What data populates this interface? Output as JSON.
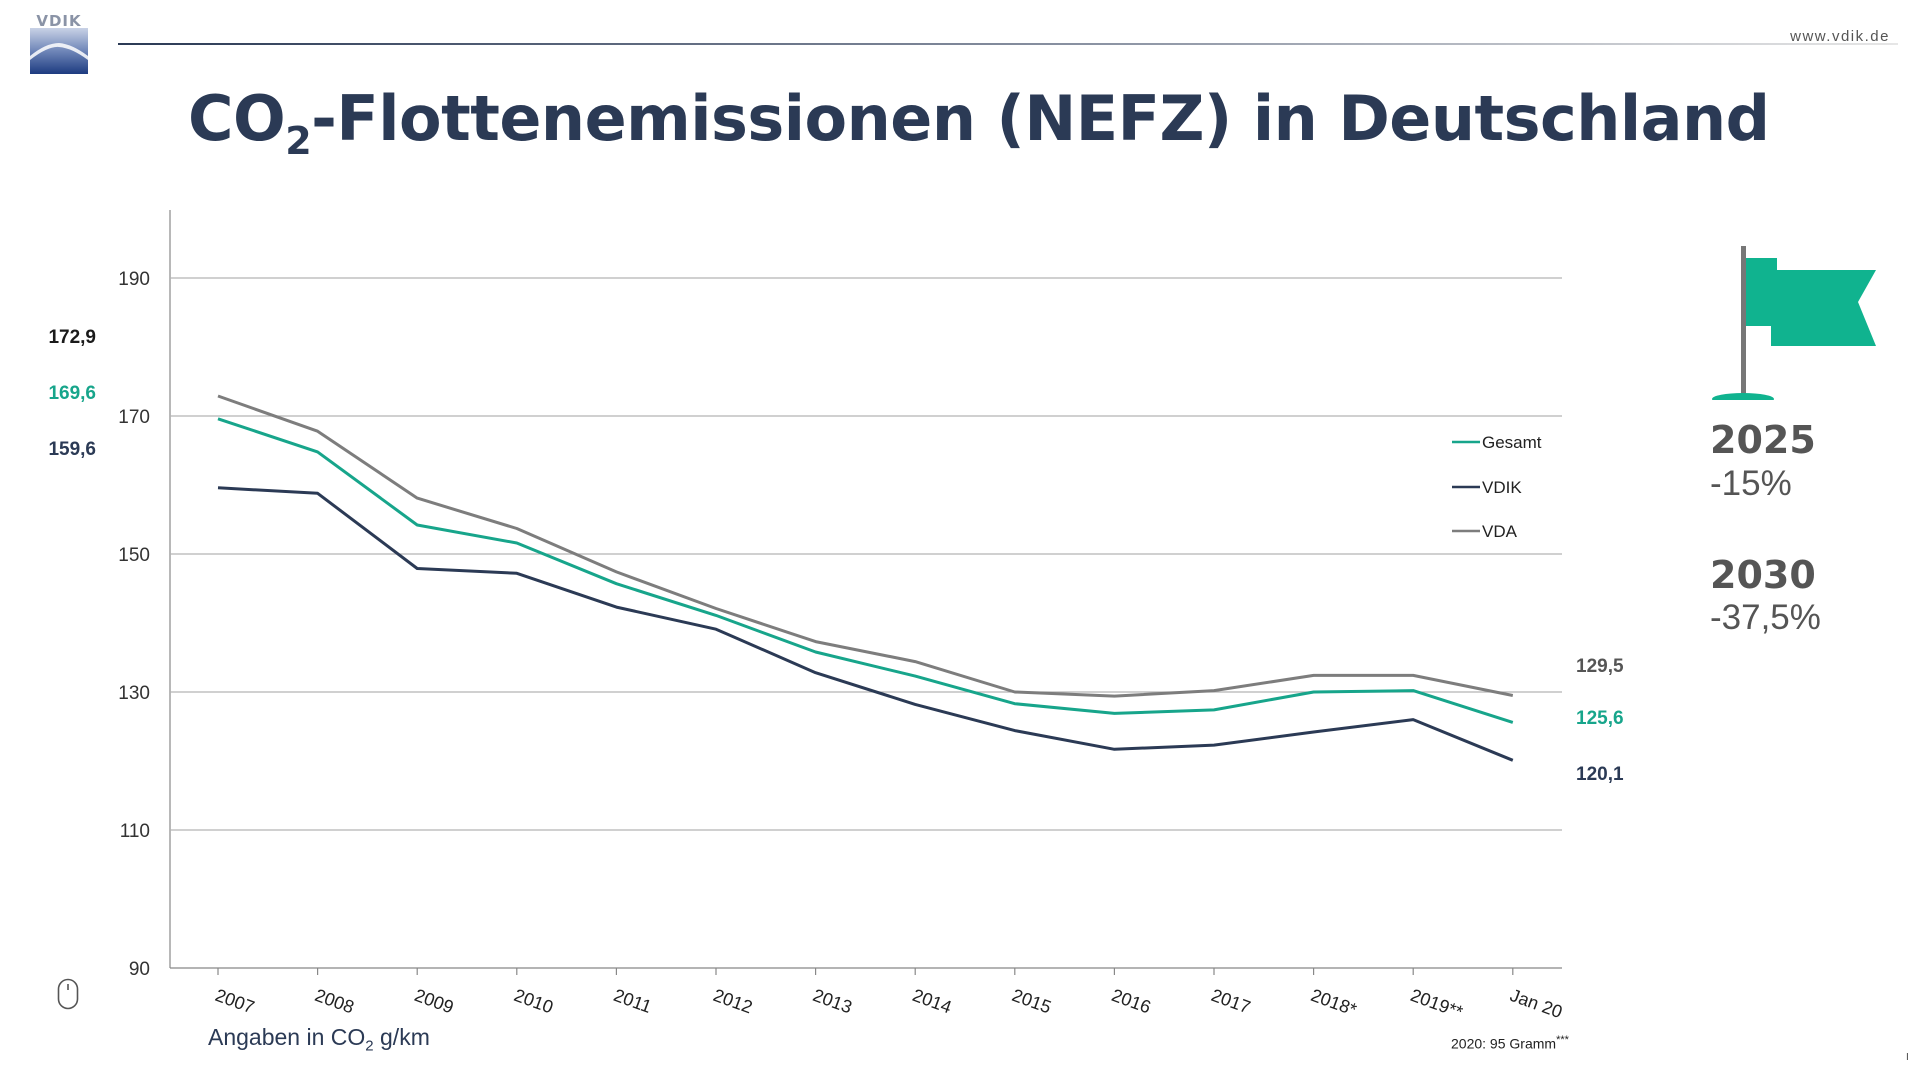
{
  "header": {
    "logo_text": "VDIK",
    "url": "www.vdik.de"
  },
  "title": {
    "prefix": "CO",
    "subscript": "2",
    "rest": "-Flottenemissionen (NEFZ) in Deutschland"
  },
  "chart_data": {
    "type": "line",
    "categories": [
      "2007",
      "2008",
      "2009",
      "2010",
      "2011",
      "2012",
      "2013",
      "2014",
      "2015",
      "2016",
      "2017",
      "2018*",
      "2019**",
      "Jan 20"
    ],
    "y_ticks": [
      190,
      170,
      150,
      130,
      110,
      90
    ],
    "ylim": [
      90,
      200
    ],
    "grid": true,
    "legend_position": "right",
    "series": [
      {
        "name": "Gesamt",
        "color": "#17a58b",
        "values": [
          169.6,
          164.8,
          154.2,
          151.6,
          145.7,
          141.1,
          135.8,
          132.3,
          128.3,
          126.9,
          127.4,
          130.0,
          130.2,
          125.6
        ]
      },
      {
        "name": "VDIK",
        "color": "#2b3a55",
        "values": [
          159.6,
          158.8,
          147.9,
          147.2,
          142.3,
          139.1,
          132.8,
          128.2,
          124.4,
          121.7,
          122.3,
          124.2,
          126.0,
          120.1
        ]
      },
      {
        "name": "VDA",
        "color": "#7d7d7d",
        "values": [
          172.9,
          167.8,
          158.1,
          153.7,
          147.4,
          142.1,
          137.3,
          134.4,
          130.0,
          129.4,
          130.2,
          132.4,
          132.4,
          129.5
        ]
      }
    ],
    "start_labels": [
      {
        "text": "172,9",
        "color": "#1a1a1a"
      },
      {
        "text": "169,6",
        "color": "#17a58b"
      },
      {
        "text": "159,6",
        "color": "#2b3a55"
      }
    ],
    "end_labels": [
      {
        "text": "129,5",
        "color": "#555555"
      },
      {
        "text": "125,6",
        "color": "#17a58b"
      },
      {
        "text": "120,1",
        "color": "#2b3a55"
      }
    ]
  },
  "goals": {
    "year_2025": "2025",
    "value_2025": "-15%",
    "year_2030": "2030",
    "value_2030": "-37,5%",
    "flag_color": "#10b38f",
    "flag_icon": "flag-icon"
  },
  "unit_note": {
    "prefix": "Angaben in CO",
    "subscript": "2",
    "rest": " g/km"
  },
  "footnote": {
    "text": "2020: 95 Gramm",
    "marker": "***"
  },
  "page_marker": "I"
}
